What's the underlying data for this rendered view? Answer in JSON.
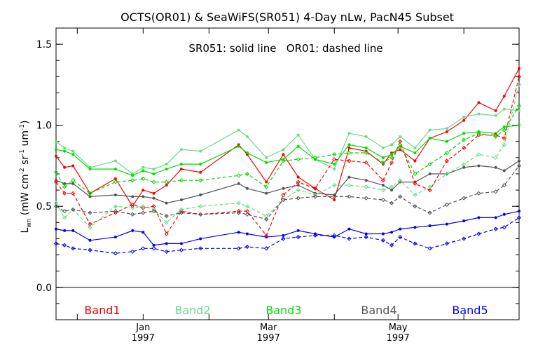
{
  "chart_data": {
    "type": "line",
    "title": "OCTS(OR01) & SeaWiFS(SR051) 4-Day nLw, PacN45 Subset",
    "annotation": "SR051: solid line   OR01: dashed line",
    "ylabel": "L_wn (mW cm^-2 sr^-1 um^-1)",
    "ylabel_parts": {
      "main": "L",
      "sub": "wn",
      "units_a": " (mW cm",
      "exp1": "-2",
      "units_b": " sr",
      "exp2": "-1",
      "units_c": " um",
      "exp3": "-1",
      "units_d": ")"
    },
    "xlabel": "",
    "ylim": [
      -0.2,
      1.6
    ],
    "yticks": [
      "0.0",
      "0.5",
      "1.0",
      "1.5"
    ],
    "xlim": [
      "1996-11-21",
      "1997-06-27"
    ],
    "xtick_labels": [
      {
        "month": "Jan",
        "year": "1997",
        "date": "1997-01-01"
      },
      {
        "month": "Mar",
        "year": "1997",
        "date": "1997-03-01"
      },
      {
        "month": "May",
        "year": "1997",
        "date": "1997-05-01"
      }
    ],
    "minor_ticks": [
      "1996-12-01",
      "1997-01-01",
      "1997-02-01",
      "1997-03-01",
      "1997-04-01",
      "1997-05-01",
      "1997-06-01"
    ],
    "reference_line": 0.0,
    "grid": false,
    "legend_placement": "bottom",
    "colors": {
      "Band1": "#ff0000",
      "Band2": "#66dd88",
      "Band3": "#00dd00",
      "Band4": "#555555",
      "Band5": "#0000ff"
    },
    "series": [
      {
        "name": "Band1",
        "sensor": "SR051",
        "style": "solid",
        "color": "#ff0000",
        "x": [
          "1996-11-21",
          "1996-11-25",
          "1996-11-29",
          "1996-12-07",
          "1996-12-19",
          "1996-12-27",
          "1997-01-01",
          "1997-01-06",
          "1997-01-12",
          "1997-01-19",
          "1997-01-28",
          "1997-02-15",
          "1997-02-19",
          "1997-02-28",
          "1997-03-08",
          "1997-03-15",
          "1997-03-23",
          "1997-04-01",
          "1997-04-08",
          "1997-04-16",
          "1997-04-24",
          "1997-04-28",
          "1997-05-02",
          "1997-05-09",
          "1997-05-16",
          "1997-05-24",
          "1997-06-01",
          "1997-06-08",
          "1997-06-16",
          "1997-06-20",
          "1997-06-27"
        ],
        "values": [
          0.81,
          0.74,
          0.75,
          0.58,
          0.67,
          0.5,
          0.6,
          0.58,
          0.63,
          0.73,
          0.71,
          0.88,
          0.82,
          0.65,
          0.82,
          0.68,
          0.61,
          0.54,
          0.86,
          0.84,
          0.76,
          0.83,
          0.85,
          0.78,
          0.92,
          0.96,
          1.03,
          1.14,
          1.09,
          1.18,
          1.35
        ]
      },
      {
        "name": "Band2",
        "sensor": "SR051",
        "style": "solid",
        "color": "#66dd88",
        "x": [
          "1996-11-21",
          "1996-11-25",
          "1996-11-29",
          "1996-12-07",
          "1996-12-19",
          "1996-12-27",
          "1997-01-01",
          "1997-01-06",
          "1997-01-12",
          "1997-01-19",
          "1997-01-28",
          "1997-02-15",
          "1997-02-19",
          "1997-02-28",
          "1997-03-08",
          "1997-03-15",
          "1997-03-23",
          "1997-04-01",
          "1997-04-08",
          "1997-04-16",
          "1997-04-24",
          "1997-04-28",
          "1997-05-02",
          "1997-05-09",
          "1997-05-16",
          "1997-05-24",
          "1997-06-01",
          "1997-06-08",
          "1997-06-16",
          "1997-06-20",
          "1997-06-27"
        ],
        "values": [
          0.9,
          0.86,
          0.84,
          0.74,
          0.78,
          0.7,
          0.74,
          0.73,
          0.76,
          0.85,
          0.84,
          0.97,
          0.93,
          0.8,
          0.85,
          0.94,
          0.79,
          0.73,
          0.95,
          0.93,
          0.86,
          0.88,
          0.93,
          0.86,
          0.97,
          0.98,
          1.05,
          1.07,
          1.06,
          1.1,
          1.09
        ]
      },
      {
        "name": "Band3",
        "sensor": "SR051",
        "style": "solid",
        "color": "#00dd00",
        "x": [
          "1996-11-21",
          "1996-11-25",
          "1996-11-29",
          "1996-12-07",
          "1996-12-19",
          "1996-12-27",
          "1997-01-01",
          "1997-01-06",
          "1997-01-12",
          "1997-01-19",
          "1997-01-28",
          "1997-02-15",
          "1997-02-19",
          "1997-02-28",
          "1997-03-08",
          "1997-03-15",
          "1997-03-23",
          "1997-04-01",
          "1997-04-08",
          "1997-04-16",
          "1997-04-24",
          "1997-04-28",
          "1997-05-02",
          "1997-05-09",
          "1997-05-16",
          "1997-05-24",
          "1997-06-01",
          "1997-06-08",
          "1997-06-16",
          "1997-06-20",
          "1997-06-27"
        ],
        "values": [
          0.85,
          0.84,
          0.82,
          0.73,
          0.73,
          0.69,
          0.72,
          0.7,
          0.73,
          0.76,
          0.76,
          0.87,
          0.83,
          0.77,
          0.79,
          0.87,
          0.79,
          0.76,
          0.88,
          0.86,
          0.8,
          0.82,
          0.87,
          0.83,
          0.92,
          0.9,
          0.95,
          0.96,
          0.95,
          0.99,
          1.0
        ]
      },
      {
        "name": "Band4",
        "sensor": "SR051",
        "style": "solid",
        "color": "#555555",
        "x": [
          "1996-11-21",
          "1996-11-25",
          "1996-11-29",
          "1996-12-07",
          "1996-12-19",
          "1996-12-27",
          "1997-01-01",
          "1997-01-06",
          "1997-01-12",
          "1997-01-19",
          "1997-01-28",
          "1997-02-15",
          "1997-02-19",
          "1997-02-28",
          "1997-03-08",
          "1997-03-15",
          "1997-03-23",
          "1997-04-01",
          "1997-04-08",
          "1997-04-16",
          "1997-04-24",
          "1997-04-28",
          "1997-05-02",
          "1997-05-09",
          "1997-05-16",
          "1997-05-24",
          "1997-06-01",
          "1997-06-08",
          "1997-06-16",
          "1997-06-20",
          "1997-06-27"
        ],
        "values": [
          0.66,
          0.64,
          0.64,
          0.56,
          0.57,
          0.56,
          0.56,
          0.55,
          0.52,
          0.54,
          0.57,
          0.64,
          0.61,
          0.58,
          0.61,
          0.63,
          0.58,
          0.57,
          0.68,
          0.66,
          0.63,
          0.6,
          0.65,
          0.65,
          0.7,
          0.7,
          0.74,
          0.75,
          0.74,
          0.72,
          0.78
        ]
      },
      {
        "name": "Band5",
        "sensor": "SR051",
        "style": "solid",
        "color": "#0000ff",
        "x": [
          "1996-11-21",
          "1996-11-25",
          "1996-11-29",
          "1996-12-07",
          "1996-12-19",
          "1996-12-27",
          "1997-01-01",
          "1997-01-06",
          "1997-01-12",
          "1997-01-19",
          "1997-01-28",
          "1997-02-15",
          "1997-02-19",
          "1997-02-28",
          "1997-03-08",
          "1997-03-15",
          "1997-03-23",
          "1997-04-01",
          "1997-04-08",
          "1997-04-16",
          "1997-04-24",
          "1997-04-28",
          "1997-05-02",
          "1997-05-09",
          "1997-05-16",
          "1997-05-24",
          "1997-06-01",
          "1997-06-08",
          "1997-06-16",
          "1997-06-20",
          "1997-06-27"
        ],
        "values": [
          0.36,
          0.35,
          0.35,
          0.29,
          0.31,
          0.35,
          0.34,
          0.26,
          0.27,
          0.27,
          0.3,
          0.34,
          0.33,
          0.31,
          0.32,
          0.35,
          0.33,
          0.31,
          0.36,
          0.33,
          0.33,
          0.34,
          0.36,
          0.37,
          0.38,
          0.39,
          0.41,
          0.43,
          0.43,
          0.45,
          0.47
        ]
      },
      {
        "name": "Band1",
        "sensor": "OR01",
        "style": "dashed",
        "color": "#ff0000",
        "x": [
          "1996-11-21",
          "1996-11-25",
          "1996-11-29",
          "1996-12-07",
          "1996-12-19",
          "1996-12-27",
          "1997-01-01",
          "1997-01-06",
          "1997-01-12",
          "1997-01-19",
          "1997-01-28",
          "1997-02-15",
          "1997-02-19",
          "1997-02-28",
          "1997-03-08",
          "1997-03-15",
          "1997-03-23",
          "1997-04-01",
          "1997-04-08",
          "1997-04-16",
          "1997-04-24",
          "1997-04-28",
          "1997-05-02",
          "1997-05-09",
          "1997-05-16",
          "1997-05-24",
          "1997-06-01",
          "1997-06-08",
          "1997-06-16",
          "1997-06-20",
          "1997-06-27"
        ],
        "values": [
          0.65,
          0.58,
          0.58,
          0.39,
          0.46,
          0.51,
          0.49,
          0.5,
          0.33,
          0.47,
          0.45,
          0.47,
          0.47,
          0.32,
          0.57,
          0.65,
          0.61,
          0.79,
          0.78,
          0.77,
          0.66,
          0.77,
          0.9,
          0.64,
          0.6,
          0.78,
          0.86,
          0.94,
          0.94,
          0.92,
          1.3
        ]
      },
      {
        "name": "Band2",
        "sensor": "OR01",
        "style": "dashed",
        "color": "#66dd88",
        "x": [
          "1996-11-21",
          "1996-11-25",
          "1996-11-29",
          "1996-12-07",
          "1996-12-19",
          "1996-12-27",
          "1997-01-01",
          "1997-01-06",
          "1997-01-12",
          "1997-01-19",
          "1997-01-28",
          "1997-02-15",
          "1997-02-19",
          "1997-02-28",
          "1997-03-08",
          "1997-03-15",
          "1997-03-23",
          "1997-04-01",
          "1997-04-08",
          "1997-04-16",
          "1997-04-24",
          "1997-04-28",
          "1997-05-02",
          "1997-05-09",
          "1997-05-16",
          "1997-05-24",
          "1997-06-01",
          "1997-06-08",
          "1997-06-16",
          "1997-06-20",
          "1997-06-27"
        ],
        "values": [
          0.52,
          0.43,
          0.48,
          0.37,
          0.5,
          0.49,
          0.5,
          0.48,
          0.4,
          0.48,
          0.5,
          0.52,
          0.5,
          0.44,
          0.54,
          0.6,
          0.57,
          0.63,
          0.63,
          0.62,
          0.6,
          0.62,
          0.66,
          0.57,
          0.62,
          0.7,
          0.76,
          0.82,
          0.8,
          0.88,
          1.25
        ]
      },
      {
        "name": "Band3",
        "sensor": "OR01",
        "style": "dashed",
        "color": "#00dd00",
        "x": [
          "1996-11-21",
          "1996-11-25",
          "1996-11-29",
          "1996-12-07",
          "1996-12-19",
          "1996-12-27",
          "1997-01-01",
          "1997-01-06",
          "1997-01-12",
          "1997-01-19",
          "1997-01-28",
          "1997-02-15",
          "1997-02-19",
          "1997-02-28",
          "1997-03-08",
          "1997-03-15",
          "1997-03-23",
          "1997-04-01",
          "1997-04-08",
          "1997-04-16",
          "1997-04-24",
          "1997-04-28",
          "1997-05-02",
          "1997-05-09",
          "1997-05-16",
          "1997-05-24",
          "1997-06-01",
          "1997-06-08",
          "1997-06-16",
          "1997-06-20",
          "1997-06-27"
        ],
        "values": [
          0.71,
          0.62,
          0.66,
          0.58,
          0.65,
          0.66,
          0.67,
          0.65,
          0.65,
          0.66,
          0.66,
          0.69,
          0.7,
          0.62,
          0.78,
          0.79,
          0.8,
          0.82,
          0.83,
          0.83,
          0.77,
          0.8,
          0.88,
          0.7,
          0.76,
          0.83,
          0.91,
          0.95,
          0.93,
          0.97,
          1.12
        ]
      },
      {
        "name": "Band4",
        "sensor": "OR01",
        "style": "dashed",
        "color": "#555555",
        "x": [
          "1996-11-21",
          "1996-11-25",
          "1996-11-29",
          "1996-12-07",
          "1996-12-19",
          "1996-12-27",
          "1997-01-01",
          "1997-01-06",
          "1997-01-12",
          "1997-01-19",
          "1997-01-28",
          "1997-02-15",
          "1997-02-19",
          "1997-02-28",
          "1997-03-08",
          "1997-03-15",
          "1997-03-23",
          "1997-04-01",
          "1997-04-08",
          "1997-04-16",
          "1997-04-24",
          "1997-04-28",
          "1997-05-02",
          "1997-05-09",
          "1997-05-16",
          "1997-05-24",
          "1997-06-01",
          "1997-06-08",
          "1997-06-16",
          "1997-06-20",
          "1997-06-27"
        ],
        "values": [
          0.5,
          0.47,
          0.48,
          0.46,
          0.47,
          0.45,
          0.46,
          0.47,
          0.44,
          0.46,
          0.45,
          0.46,
          0.45,
          0.42,
          0.54,
          0.55,
          0.56,
          0.56,
          0.56,
          0.55,
          0.54,
          0.52,
          0.56,
          0.5,
          0.46,
          0.51,
          0.55,
          0.58,
          0.59,
          0.63,
          0.75
        ]
      },
      {
        "name": "Band5",
        "sensor": "OR01",
        "style": "dashed",
        "color": "#0000ff",
        "x": [
          "1996-11-21",
          "1996-11-25",
          "1996-11-29",
          "1996-12-07",
          "1996-12-19",
          "1996-12-27",
          "1997-01-01",
          "1997-01-06",
          "1997-01-12",
          "1997-01-19",
          "1997-01-28",
          "1997-02-15",
          "1997-02-19",
          "1997-02-28",
          "1997-03-08",
          "1997-03-15",
          "1997-03-23",
          "1997-04-01",
          "1997-04-08",
          "1997-04-16",
          "1997-04-24",
          "1997-04-28",
          "1997-05-02",
          "1997-05-09",
          "1997-05-16",
          "1997-05-24",
          "1997-06-01",
          "1997-06-08",
          "1997-06-16",
          "1997-06-20",
          "1997-06-27"
        ],
        "values": [
          0.27,
          0.26,
          0.24,
          0.23,
          0.21,
          0.22,
          0.24,
          0.24,
          0.22,
          0.23,
          0.24,
          0.24,
          0.25,
          0.24,
          0.3,
          0.31,
          0.32,
          0.32,
          0.3,
          0.31,
          0.29,
          0.26,
          0.31,
          0.27,
          0.24,
          0.27,
          0.3,
          0.33,
          0.36,
          0.37,
          0.43
        ]
      }
    ]
  }
}
